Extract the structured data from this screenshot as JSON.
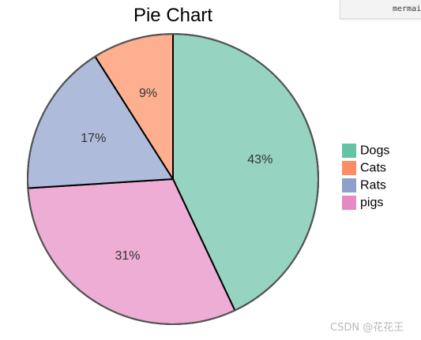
{
  "corner_tab": {
    "label": "mermaid"
  },
  "watermark": "CSDN @花花王",
  "chart_data": {
    "type": "pie",
    "title": "Pie Chart",
    "legend_position": "right",
    "start_angle": "top, clockwise",
    "slices": [
      {
        "label": "Dogs",
        "percent": 43,
        "display": "43%",
        "color": "#66c2a5",
        "fill": "#96d3c0"
      },
      {
        "label": "Cats",
        "percent": 9,
        "display": "9%",
        "color": "#fc8d62",
        "fill": "#fdaf8f"
      },
      {
        "label": "Rats",
        "percent": 17,
        "display": "17%",
        "color": "#8da0cb",
        "fill": "#afbbdb"
      },
      {
        "label": "pigs",
        "percent": 31,
        "display": "31%",
        "color": "#e78ac3",
        "fill": "#eeadd5"
      }
    ],
    "slice_order": [
      "Dogs",
      "pigs",
      "Rats",
      "Cats"
    ]
  }
}
